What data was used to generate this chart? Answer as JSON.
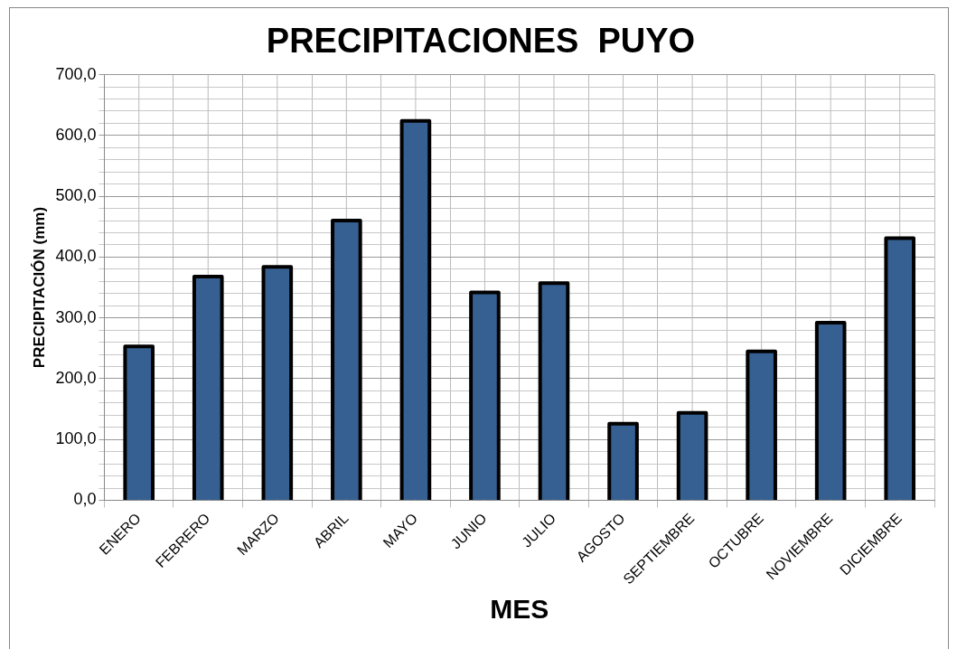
{
  "chart_data": {
    "type": "bar",
    "title": "PRECIPITACIONES  PUYO",
    "xlabel": "MES",
    "ylabel": "PRECIPITACIÓN (mm)",
    "categories": [
      "ENERO",
      "FEBRERO",
      "MARZO",
      "ABRIL",
      "MAYO",
      "JUNIO",
      "JULIO",
      "AGOSTO",
      "SEPTIEMBRE",
      "OCTUBRE",
      "NOVIEMBRE",
      "DICIEMBRE"
    ],
    "values": [
      253,
      368,
      384,
      460,
      624,
      342,
      357,
      126,
      144,
      245,
      292,
      431
    ],
    "color": "#366092",
    "ylim": [
      0,
      700
    ],
    "yticks": [
      {
        "value": 0,
        "label": "0,0"
      },
      {
        "value": 20,
        "label": null
      },
      {
        "value": 40,
        "label": null
      },
      {
        "value": 60,
        "label": null
      },
      {
        "value": 80,
        "label": null
      },
      {
        "value": 100,
        "label": "100,0"
      },
      {
        "value": 120,
        "label": null
      },
      {
        "value": 140,
        "label": null
      },
      {
        "value": 160,
        "label": null
      },
      {
        "value": 180,
        "label": null
      },
      {
        "value": 200,
        "label": "200,0"
      },
      {
        "value": 220,
        "label": null
      },
      {
        "value": 240,
        "label": null
      },
      {
        "value": 260,
        "label": null
      },
      {
        "value": 280,
        "label": null
      },
      {
        "value": 300,
        "label": "300,0"
      },
      {
        "value": 320,
        "label": null
      },
      {
        "value": 340,
        "label": null
      },
      {
        "value": 360,
        "label": null
      },
      {
        "value": 380,
        "label": null
      },
      {
        "value": 400,
        "label": "400,0"
      },
      {
        "value": 420,
        "label": null
      },
      {
        "value": 440,
        "label": null
      },
      {
        "value": 460,
        "label": null
      },
      {
        "value": 480,
        "label": null
      },
      {
        "value": 500,
        "label": "500,0"
      },
      {
        "value": 520,
        "label": null
      },
      {
        "value": 540,
        "label": null
      },
      {
        "value": 560,
        "label": null
      },
      {
        "value": 580,
        "label": null
      },
      {
        "value": 600,
        "label": "600,0"
      },
      {
        "value": 620,
        "label": null
      },
      {
        "value": 640,
        "label": null
      },
      {
        "value": 660,
        "label": null
      },
      {
        "value": 680,
        "label": null
      },
      {
        "value": 700,
        "label": "700,0"
      }
    ],
    "grid": true,
    "legend": false
  }
}
